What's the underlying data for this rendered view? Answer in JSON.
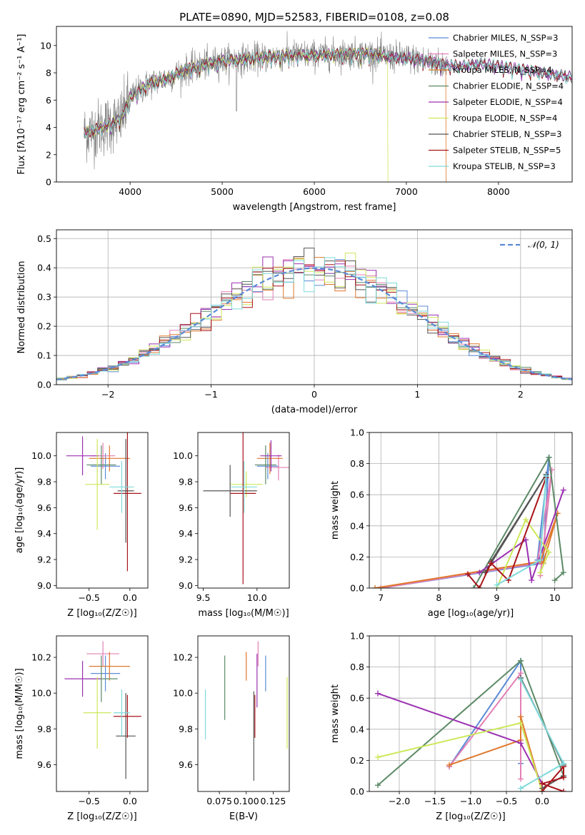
{
  "colors": {
    "chabrier_miles": "#5b8bd8",
    "salpeter_miles": "#e37fb5",
    "kroupa_miles": "#e0782d",
    "chabrier_elodie": "#5c8a66",
    "salpeter_elodie": "#9b30b0",
    "kroupa_elodie": "#cde85a",
    "chabrier_stelib": "#555555",
    "salpeter_stelib": "#a8141a",
    "kroupa_stelib": "#7fdadb",
    "grid": "#b0b0b0",
    "data": "#808080",
    "gauss": "#5b8bd8"
  },
  "chart_data": [
    {
      "id": "spectrum",
      "type": "line",
      "title": "PLATE=0890, MJD=52583, FIBERID=0108, z=0.08",
      "xlabel": "wavelength [Angstrom, rest frame]",
      "ylabel": "Flux [fλ10⁻¹⁷ erg cm⁻² s⁻¹ A⁻¹]",
      "xlim": [
        3200,
        8800
      ],
      "ylim": [
        0,
        11.4
      ],
      "xticks": [
        4000,
        5000,
        6000,
        7000,
        8000
      ],
      "yticks": [
        0,
        2,
        4,
        6,
        8,
        10
      ],
      "legend": [
        {
          "label": "Chabrier MILES, N_SSP=3",
          "color": "chabrier_miles"
        },
        {
          "label": "Salpeter MILES, N_SSP=3",
          "color": "salpeter_miles"
        },
        {
          "label": "Kroupa MILES, N_SSP=4",
          "color": "kroupa_miles"
        },
        {
          "label": "Chabrier ELODIE, N_SSP=4",
          "color": "chabrier_elodie"
        },
        {
          "label": "Salpeter ELODIE, N_SSP=4",
          "color": "salpeter_elodie"
        },
        {
          "label": "Kroupa ELODIE, N_SSP=4",
          "color": "kroupa_elodie"
        },
        {
          "label": "Chabrier STELIB, N_SSP=3",
          "color": "chabrier_stelib"
        },
        {
          "label": "Salpeter STELIB, N_SSP=5",
          "color": "salpeter_stelib"
        },
        {
          "label": "Kroupa STELIB, N_SSP=3",
          "color": "kroupa_stelib"
        }
      ],
      "continuum": [
        [
          3500,
          3.6
        ],
        [
          3650,
          3.9
        ],
        [
          3800,
          4.3
        ],
        [
          3900,
          4.6
        ],
        [
          4000,
          6.2
        ],
        [
          4200,
          7.2
        ],
        [
          4400,
          7.6
        ],
        [
          4600,
          8.2
        ],
        [
          4800,
          8.6
        ],
        [
          5000,
          8.9
        ],
        [
          5200,
          9.0
        ],
        [
          5400,
          9.1
        ],
        [
          5600,
          9.2
        ],
        [
          5800,
          9.3
        ],
        [
          6000,
          9.3
        ],
        [
          6200,
          9.35
        ],
        [
          6400,
          9.4
        ],
        [
          6600,
          9.4
        ],
        [
          6800,
          9.2
        ],
        [
          7000,
          9.1
        ],
        [
          7200,
          8.9
        ],
        [
          7400,
          8.6
        ],
        [
          7600,
          8.5
        ],
        [
          7800,
          8.7
        ],
        [
          8000,
          8.5
        ],
        [
          8200,
          8.3
        ],
        [
          8400,
          8.1
        ],
        [
          8600,
          7.9
        ],
        [
          8800,
          7.7
        ]
      ]
    },
    {
      "id": "residuals",
      "type": "line",
      "xlabel": "(data-model)/error",
      "ylabel": "Normed distribution",
      "xlim": [
        -2.5,
        2.5
      ],
      "ylim": [
        0,
        0.53
      ],
      "xticks": [
        -2,
        -1,
        0,
        1,
        2
      ],
      "xtick_labels": [
        "−2",
        "−1",
        "0",
        "1",
        "2"
      ],
      "yticks": [
        0,
        0.1,
        0.2,
        0.3,
        0.4,
        0.5
      ],
      "ytick_labels": [
        "0.0",
        "0.1",
        "0.2",
        "0.3",
        "0.4",
        "0.5"
      ],
      "legend": [
        {
          "label": "𝒩(0, 1)",
          "color": "gauss",
          "style": "dashed"
        }
      ]
    },
    {
      "id": "age_vs_z",
      "type": "scatter",
      "xlabel": "Z [log₁₀(Z/Z☉)]",
      "ylabel": "age  [log₁₀(age/yr)]",
      "xlim": [
        -0.9,
        0.22
      ],
      "ylim": [
        8.98,
        10.18
      ],
      "xticks": [
        -0.5,
        0.0
      ],
      "xtick_labels": [
        "−0.5",
        "0.0"
      ],
      "yticks": [
        9.0,
        9.2,
        9.4,
        9.6,
        9.8,
        10.0
      ],
      "ytick_labels": [
        "9.0",
        "9.2",
        "9.4",
        "9.6",
        "9.8",
        "10.0"
      ],
      "points": [
        {
          "series": "chabrier_miles",
          "x": -0.3,
          "y": 9.92,
          "xerr": 0.18,
          "yerr": 0.1
        },
        {
          "series": "salpeter_miles",
          "x": -0.33,
          "y": 10.0,
          "xerr": 0.15,
          "yerr": 0.1
        },
        {
          "series": "kroupa_miles",
          "x": -0.25,
          "y": 9.98,
          "xerr": 0.25,
          "yerr": 0.1
        },
        {
          "series": "chabrier_elodie",
          "x": -0.35,
          "y": 9.93,
          "xerr": 0.18,
          "yerr": 0.15
        },
        {
          "series": "salpeter_elodie",
          "x": -0.58,
          "y": 10.0,
          "xerr": 0.2,
          "yerr": 0.15
        },
        {
          "series": "kroupa_elodie",
          "x": -0.4,
          "y": 9.78,
          "xerr": 0.15,
          "yerr": 0.35
        },
        {
          "series": "chabrier_stelib",
          "x": -0.05,
          "y": 9.73,
          "xerr": 0.1,
          "yerr": 0.4
        },
        {
          "series": "salpeter_stelib",
          "x": -0.03,
          "y": 9.71,
          "xerr": 0.17,
          "yerr": 0.6
        },
        {
          "series": "kroupa_stelib",
          "x": -0.1,
          "y": 9.76,
          "xerr": 0.15,
          "yerr": 0.2
        }
      ]
    },
    {
      "id": "age_vs_mass",
      "type": "scatter",
      "xlabel": "mass [log₁₀(M/M☉)]",
      "xlim": [
        9.45,
        10.3
      ],
      "ylim": [
        8.98,
        10.18
      ],
      "xticks": [
        9.5,
        10.0
      ],
      "xtick_labels": [
        "9.5",
        "10.0"
      ],
      "yticks": [
        9.0,
        9.2,
        9.4,
        9.6,
        9.8,
        10.0
      ],
      "ytick_labels": [
        "9.0",
        "9.2",
        "9.4",
        "9.6",
        "9.8",
        "10.0"
      ],
      "points": [
        {
          "series": "chabrier_miles",
          "x": 10.1,
          "y": 9.92,
          "xerr": 0.1,
          "yerr": 0.1
        },
        {
          "series": "salpeter_miles",
          "x": 10.2,
          "y": 9.91,
          "xerr": 0.12,
          "yerr": 0.1
        },
        {
          "series": "kroupa_miles",
          "x": 10.12,
          "y": 9.98,
          "xerr": 0.12,
          "yerr": 0.12
        },
        {
          "series": "chabrier_elodie",
          "x": 10.08,
          "y": 9.93,
          "xerr": 0.1,
          "yerr": 0.15
        },
        {
          "series": "salpeter_elodie",
          "x": 10.13,
          "y": 10.0,
          "xerr": 0.1,
          "yerr": 0.12
        },
        {
          "series": "kroupa_elodie",
          "x": 9.9,
          "y": 9.78,
          "xerr": 0.15,
          "yerr": 0.1
        },
        {
          "series": "chabrier_stelib",
          "x": 9.75,
          "y": 9.73,
          "xerr": 0.25,
          "yerr": 0.2
        },
        {
          "series": "salpeter_stelib",
          "x": 9.87,
          "y": 9.71,
          "xerr": 0.12,
          "yerr": 0.7
        },
        {
          "series": "kroupa_stelib",
          "x": 9.88,
          "y": 9.76,
          "xerr": 0.12,
          "yerr": 0.2
        }
      ]
    },
    {
      "id": "mass_weight_vs_age",
      "type": "line",
      "xlabel": "age  [log₁₀(age/yr)]",
      "ylabel": "mass weight",
      "xlim": [
        6.8,
        10.3
      ],
      "ylim": [
        0,
        1.0
      ],
      "xticks": [
        7,
        8,
        9,
        10
      ],
      "yticks": [
        0,
        0.2,
        0.4,
        0.6,
        0.8,
        1.0
      ],
      "ytick_labels": [
        "0.0",
        "0.2",
        "0.4",
        "0.6",
        "0.8",
        "1.0"
      ],
      "series": [
        {
          "name": "chabrier_miles",
          "points": [
            [
              7.0,
              0.0
            ],
            [
              9.8,
              0.16
            ],
            [
              9.9,
              0.84
            ],
            [
              9.7,
              0.18
            ]
          ]
        },
        {
          "name": "salpeter_miles",
          "points": [
            [
              7.0,
              0.0
            ],
            [
              9.7,
              0.16
            ],
            [
              9.95,
              0.76
            ],
            [
              9.75,
              0.08
            ]
          ]
        },
        {
          "name": "kroupa_miles",
          "points": [
            [
              6.9,
              0.0
            ],
            [
              9.75,
              0.17
            ],
            [
              10.05,
              0.48
            ],
            [
              9.8,
              0.16
            ]
          ]
        },
        {
          "name": "chabrier_elodie",
          "points": [
            [
              8.6,
              0.0
            ],
            [
              9.9,
              0.84
            ],
            [
              10.15,
              0.1
            ],
            [
              10.0,
              0.05
            ]
          ]
        },
        {
          "name": "salpeter_elodie",
          "points": [
            [
              8.7,
              0.1
            ],
            [
              9.5,
              0.31
            ],
            [
              9.6,
              0.05
            ],
            [
              10.15,
              0.63
            ]
          ]
        },
        {
          "name": "kroupa_elodie",
          "points": [
            [
              9.0,
              0.0
            ],
            [
              9.5,
              0.44
            ],
            [
              9.9,
              0.23
            ],
            [
              9.75,
              0.1
            ]
          ]
        },
        {
          "name": "chabrier_stelib",
          "points": [
            [
              8.8,
              0.1
            ],
            [
              9.85,
              0.73
            ],
            [
              8.9,
              0.17
            ]
          ]
        },
        {
          "name": "salpeter_stelib",
          "points": [
            [
              8.5,
              0.09
            ],
            [
              8.7,
              0.0
            ],
            [
              8.9,
              0.16
            ],
            [
              9.2,
              0.05
            ],
            [
              9.85,
              0.71
            ]
          ]
        },
        {
          "name": "kroupa_stelib",
          "points": [
            [
              9.0,
              0.02
            ],
            [
              9.75,
              0.18
            ],
            [
              9.85,
              0.72
            ]
          ]
        }
      ]
    },
    {
      "id": "mass_vs_z",
      "type": "scatter",
      "xlabel": "Z [log₁₀(Z/Z☉)]",
      "ylabel": "mass [log₁₀(M/M☉)]",
      "xlim": [
        -0.9,
        0.22
      ],
      "ylim": [
        9.45,
        10.32
      ],
      "xticks": [
        -0.5,
        0.0
      ],
      "xtick_labels": [
        "−0.5",
        "0.0"
      ],
      "yticks": [
        9.6,
        9.8,
        10.0,
        10.2
      ],
      "ytick_labels": [
        "9.6",
        "9.8",
        "10.0",
        "10.2"
      ],
      "points": [
        {
          "series": "chabrier_miles",
          "x": -0.3,
          "y": 10.11,
          "xerr": 0.18,
          "yerr": 0.1
        },
        {
          "series": "salpeter_miles",
          "x": -0.33,
          "y": 10.22,
          "xerr": 0.2,
          "yerr": 0.07
        },
        {
          "series": "kroupa_miles",
          "x": -0.25,
          "y": 10.15,
          "xerr": 0.25,
          "yerr": 0.08
        },
        {
          "series": "chabrier_elodie",
          "x": -0.35,
          "y": 10.08,
          "xerr": 0.2,
          "yerr": 0.13
        },
        {
          "series": "salpeter_elodie",
          "x": -0.58,
          "y": 10.08,
          "xerr": 0.22,
          "yerr": 0.1
        },
        {
          "series": "kroupa_elodie",
          "x": -0.4,
          "y": 9.89,
          "xerr": 0.17,
          "yerr": 0.2
        },
        {
          "series": "chabrier_stelib",
          "x": -0.05,
          "y": 9.76,
          "xerr": 0.12,
          "yerr": 0.24
        },
        {
          "series": "salpeter_stelib",
          "x": -0.03,
          "y": 9.87,
          "xerr": 0.17,
          "yerr": 0.12
        },
        {
          "series": "kroupa_stelib",
          "x": -0.1,
          "y": 9.89,
          "xerr": 0.1,
          "yerr": 0.13
        }
      ]
    },
    {
      "id": "mass_vs_ebv",
      "type": "scatter",
      "xlabel": "E(B-V)",
      "xlim": [
        0.055,
        0.14
      ],
      "ylim": [
        9.45,
        10.32
      ],
      "xticks": [
        0.075,
        0.1,
        0.125
      ],
      "xtick_labels": [
        "0.075",
        "0.100",
        "0.125"
      ],
      "yticks": [
        9.6,
        9.8,
        10.0,
        10.2
      ],
      "ytick_labels": [
        "9.6",
        "9.8",
        "10.0",
        "10.2"
      ],
      "points": [
        {
          "series": "chabrier_miles",
          "x": 0.118,
          "y": 10.11,
          "xerr": 0,
          "yerr": 0.1
        },
        {
          "series": "salpeter_miles",
          "x": 0.111,
          "y": 10.22,
          "xerr": 0,
          "yerr": 0.07
        },
        {
          "series": "kroupa_miles",
          "x": 0.1,
          "y": 10.15,
          "xerr": 0,
          "yerr": 0.08
        },
        {
          "series": "chabrier_elodie",
          "x": 0.08,
          "y": 10.03,
          "xerr": 0,
          "yerr": 0.18
        },
        {
          "series": "salpeter_elodie",
          "x": 0.11,
          "y": 10.07,
          "xerr": 0,
          "yerr": 0.15
        },
        {
          "series": "kroupa_elodie",
          "x": 0.138,
          "y": 9.89,
          "xerr": 0,
          "yerr": 0.2
        },
        {
          "series": "chabrier_stelib",
          "x": 0.107,
          "y": 9.76,
          "xerr": 0,
          "yerr": 0.25
        },
        {
          "series": "salpeter_stelib",
          "x": 0.108,
          "y": 9.87,
          "xerr": 0,
          "yerr": 0.12
        },
        {
          "series": "kroupa_stelib",
          "x": 0.062,
          "y": 9.88,
          "xerr": 0,
          "yerr": 0.14
        }
      ]
    },
    {
      "id": "mass_weight_vs_z",
      "type": "line",
      "xlabel": "Z [log₁₀(Z/Z☉)]",
      "ylabel": "mass weight",
      "xlim": [
        -2.42,
        0.42
      ],
      "ylim": [
        0,
        1.0
      ],
      "xticks": [
        -2.0,
        -1.5,
        -1.0,
        -0.5,
        0.0
      ],
      "xtick_labels": [
        "−2.0",
        "−1.5",
        "−1.0",
        "−0.5",
        "0.0"
      ],
      "yticks": [
        0,
        0.2,
        0.4,
        0.6,
        0.8,
        1.0
      ],
      "ytick_labels": [
        "0.0",
        "0.2",
        "0.4",
        "0.6",
        "0.8",
        "1.0"
      ],
      "series": [
        {
          "name": "chabrier_miles",
          "points": [
            [
              -1.3,
              0.16
            ],
            [
              -0.3,
              0.84
            ],
            [
              -0.3,
              0.18
            ]
          ]
        },
        {
          "name": "salpeter_miles",
          "points": [
            [
              -1.3,
              0.16
            ],
            [
              -0.3,
              0.76
            ],
            [
              -0.3,
              0.08
            ]
          ]
        },
        {
          "name": "kroupa_miles",
          "points": [
            [
              -1.3,
              0.17
            ],
            [
              -0.3,
              0.33
            ],
            [
              -0.3,
              0.48
            ],
            [
              0.0,
              0.0
            ]
          ]
        },
        {
          "name": "chabrier_elodie",
          "points": [
            [
              -2.3,
              0.04
            ],
            [
              -0.3,
              0.84
            ],
            [
              0.3,
              0.1
            ]
          ]
        },
        {
          "name": "salpeter_elodie",
          "points": [
            [
              -2.3,
              0.63
            ],
            [
              -0.3,
              0.31
            ],
            [
              0.0,
              0.05
            ]
          ]
        },
        {
          "name": "kroupa_elodie",
          "points": [
            [
              -2.3,
              0.22
            ],
            [
              -0.3,
              0.44
            ],
            [
              0.0,
              0.0
            ]
          ]
        },
        {
          "name": "chabrier_stelib",
          "points": [
            [
              -0.3,
              0.73
            ],
            [
              0.3,
              0.17
            ],
            [
              0.3,
              0.1
            ],
            [
              0.0,
              0.02
            ]
          ]
        },
        {
          "name": "salpeter_stelib",
          "points": [
            [
              0.0,
              0.0
            ],
            [
              0.3,
              0.16
            ],
            [
              0.3,
              0.09
            ],
            [
              0.0,
              0.05
            ],
            [
              0.3,
              0.0
            ]
          ]
        },
        {
          "name": "kroupa_stelib",
          "points": [
            [
              -0.3,
              0.02
            ],
            [
              0.3,
              0.18
            ],
            [
              -0.3,
              0.72
            ]
          ]
        }
      ]
    }
  ]
}
